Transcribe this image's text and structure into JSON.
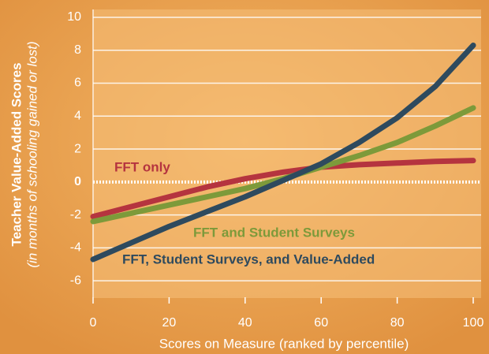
{
  "chart_data": {
    "type": "line",
    "y_label": "Teacher Value-Added Scores",
    "y_sublabel": "(in months of schooling gained or lost)",
    "x_label": "Scores on Measure (ranked by percentile)",
    "x": [
      0,
      10,
      20,
      30,
      40,
      50,
      60,
      70,
      80,
      90,
      100
    ],
    "series": [
      {
        "name": "FFT only",
        "color": "#b5343f",
        "values": [
          -2.1,
          -1.5,
          -0.9,
          -0.3,
          0.2,
          0.6,
          0.9,
          1.05,
          1.15,
          1.25,
          1.3
        ]
      },
      {
        "name": "FFT and Student Surveys",
        "color": "#7d9a3a",
        "values": [
          -2.4,
          -1.9,
          -1.4,
          -0.9,
          -0.4,
          0.2,
          0.9,
          1.6,
          2.4,
          3.4,
          4.5
        ]
      },
      {
        "name": "FFT, Student Surveys, and Value-Added",
        "color": "#2e4a5e",
        "values": [
          -4.7,
          -3.7,
          -2.7,
          -1.8,
          -0.9,
          0.1,
          1.1,
          2.4,
          3.9,
          5.8,
          8.3
        ]
      }
    ],
    "xlim": [
      0,
      100
    ],
    "xticks": [
      0,
      20,
      40,
      60,
      80,
      100
    ],
    "ylim": [
      -7,
      10
    ],
    "yticks": [
      -6,
      -4,
      -2,
      0,
      2,
      4,
      6,
      8,
      10
    ],
    "grid": true
  }
}
